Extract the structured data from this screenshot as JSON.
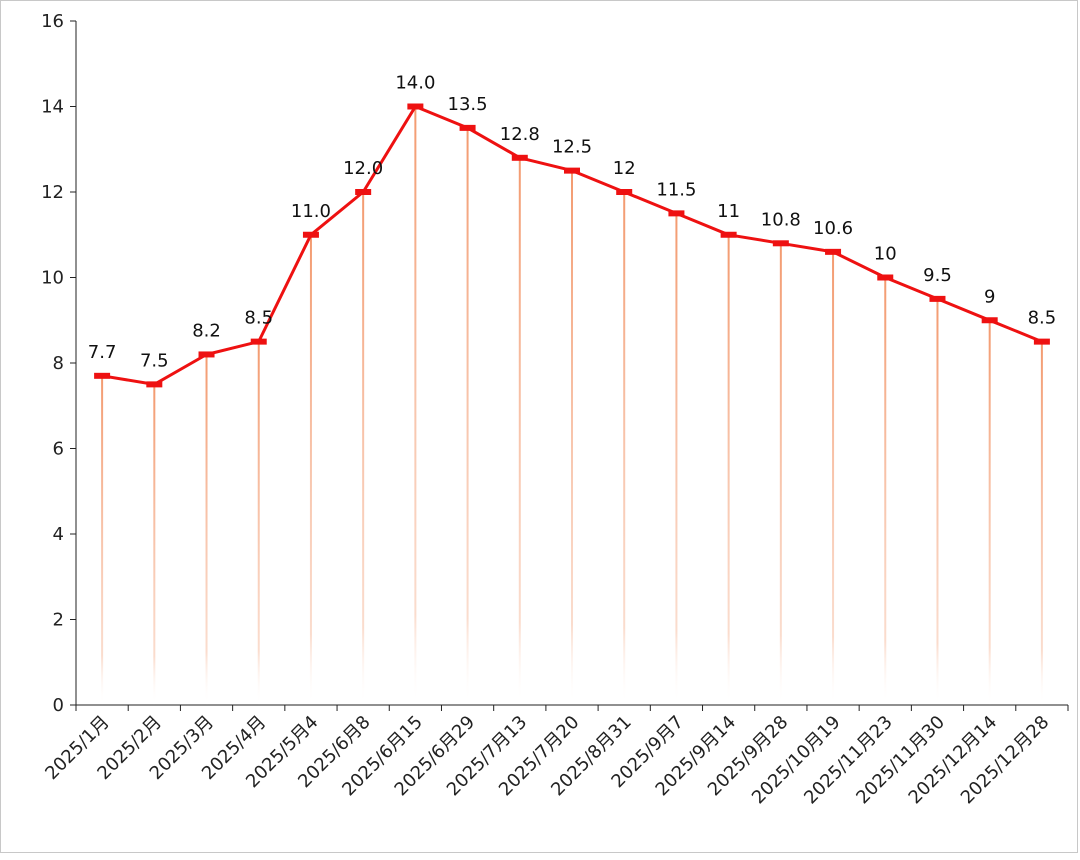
{
  "chart_data": {
    "type": "line",
    "title": "",
    "xlabel": "",
    "ylabel": "",
    "ylim": [
      0,
      16
    ],
    "yticks": [
      0,
      2,
      4,
      6,
      8,
      10,
      12,
      14,
      16
    ],
    "grid": false,
    "legend": "none",
    "categories": [
      "2025/1月",
      "2025/2月",
      "2025/3月",
      "2025/4月",
      "2025/5月4",
      "2025/6月8",
      "2025/6月15",
      "2025/6月29",
      "2025/7月13",
      "2025/7月20",
      "2025/8月31",
      "2025/9月7",
      "2025/9月14",
      "2025/9月28",
      "2025/10月19",
      "2025/11月23",
      "2025/11月30",
      "2025/12月14",
      "2025/12月28"
    ],
    "series": [
      {
        "name": "",
        "values": [
          7.7,
          7.5,
          8.2,
          8.5,
          11.0,
          12.0,
          14.0,
          13.5,
          12.8,
          12.5,
          12,
          11.5,
          11,
          10.8,
          10.6,
          10,
          9.5,
          9,
          8.5
        ],
        "labels": [
          "7.7",
          "7.5",
          "8.2",
          "8.5",
          "11.0",
          "12.0",
          "14.0",
          "13.5",
          "12.8",
          "12.5",
          "12",
          "11.5",
          "11",
          "10.8",
          "10.6",
          "10",
          "9.5",
          "9",
          "8.5"
        ],
        "color": "#ee1111",
        "drop_line_color": "#f4a07a"
      }
    ]
  }
}
